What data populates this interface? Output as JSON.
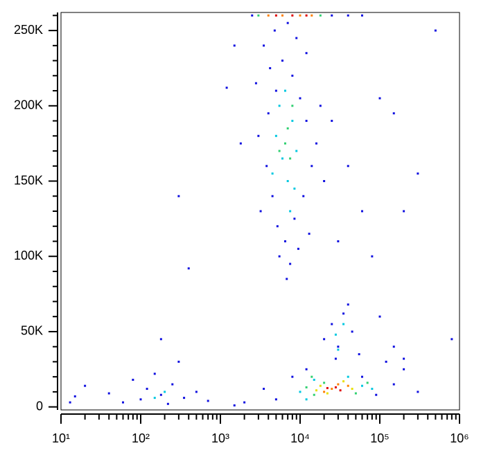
{
  "chart_data": {
    "type": "scatter",
    "xscale": "log",
    "xlim": [
      10,
      1000000
    ],
    "ylim": [
      -2000,
      262000
    ],
    "xticks": [
      {
        "value": 10,
        "label": "10¹"
      },
      {
        "value": 100,
        "label": "10²"
      },
      {
        "value": 1000,
        "label": "10³"
      },
      {
        "value": 10000,
        "label": "10⁴"
      },
      {
        "value": 100000,
        "label": "10⁵"
      },
      {
        "value": 1000000,
        "label": "10⁶"
      }
    ],
    "xminorticks": [
      20,
      30,
      40,
      50,
      60,
      70,
      80,
      90,
      200,
      300,
      400,
      500,
      600,
      700,
      800,
      900,
      2000,
      3000,
      4000,
      5000,
      6000,
      7000,
      8000,
      9000,
      20000,
      30000,
      40000,
      50000,
      60000,
      70000,
      80000,
      90000,
      200000,
      300000,
      400000,
      500000,
      600000,
      700000,
      800000,
      900000
    ],
    "yticks": [
      {
        "value": 0,
        "label": "0"
      },
      {
        "value": 50000,
        "label": "50K"
      },
      {
        "value": 100000,
        "label": "100K"
      },
      {
        "value": 150000,
        "label": "150K"
      },
      {
        "value": 200000,
        "label": "200K"
      },
      {
        "value": 250000,
        "label": "250K"
      }
    ],
    "yminorticks": [
      10000,
      20000,
      30000,
      40000,
      60000,
      70000,
      80000,
      90000,
      110000,
      120000,
      130000,
      140000,
      160000,
      170000,
      180000,
      190000,
      210000,
      220000,
      230000,
      240000,
      260000
    ],
    "series": [
      {
        "color": "#1010e0",
        "x": [
          3500,
          4200,
          5000,
          6000,
          8000,
          10000,
          12000,
          3000,
          3800,
          4500,
          5200,
          6500,
          8500,
          11000,
          14000,
          16000,
          4000,
          9000,
          7000,
          3200,
          5500,
          7500,
          9500,
          13000,
          18000,
          2800,
          20000,
          6800,
          4800,
          12000,
          25000,
          40000,
          60000,
          150000,
          200000,
          1500,
          1800,
          300,
          400,
          1200,
          30000,
          80000,
          100000,
          300000,
          500000,
          20000,
          25000,
          30000,
          35000,
          45000,
          55000,
          28000,
          40000,
          100000,
          150000,
          200000,
          800000,
          5000,
          8000,
          12000,
          60000,
          90000,
          150000,
          200000,
          300000,
          3500,
          2000,
          1500,
          120000,
          15,
          20,
          40,
          60,
          80,
          100,
          120,
          150,
          180,
          220,
          250,
          300,
          350,
          500,
          700,
          180,
          13,
          2500,
          25000,
          40000,
          60000
        ],
        "values": [
          240000,
          225000,
          210000,
          230000,
          220000,
          205000,
          190000,
          180000,
          160000,
          140000,
          120000,
          110000,
          125000,
          140000,
          160000,
          175000,
          195000,
          245000,
          255000,
          130000,
          100000,
          95000,
          105000,
          115000,
          200000,
          215000,
          150000,
          85000,
          250000,
          235000,
          190000,
          160000,
          130000,
          195000,
          130000,
          240000,
          175000,
          140000,
          92000,
          212000,
          110000,
          100000,
          205000,
          155000,
          250000,
          45000,
          55000,
          40000,
          62000,
          50000,
          35000,
          32000,
          68000,
          60000,
          40000,
          32000,
          45000,
          5000,
          20000,
          25000,
          20000,
          8000,
          15000,
          25000,
          10000,
          12000,
          3000,
          1000,
          30000,
          7000,
          14000,
          9000,
          3000,
          18000,
          5000,
          12000,
          22000,
          8000,
          2000,
          15000,
          30000,
          6000,
          10000,
          4000,
          45000,
          3000,
          260000,
          260000,
          260000,
          260000
        ]
      },
      {
        "color": "#00c8e0",
        "x": [
          5000,
          6000,
          7000,
          8000,
          6500,
          4500,
          9000,
          7500,
          5500,
          8500,
          28000,
          35000,
          30000,
          10000,
          15000,
          40000,
          60000,
          80000,
          12000,
          200,
          150
        ],
        "values": [
          180000,
          165000,
          150000,
          190000,
          210000,
          155000,
          170000,
          130000,
          200000,
          145000,
          48000,
          55000,
          38000,
          10000,
          18000,
          20000,
          14000,
          12000,
          5000,
          10000,
          6000
        ]
      },
      {
        "color": "#30d070",
        "x": [
          6500,
          7500,
          5500,
          8000,
          7000,
          15000,
          20000,
          50000,
          12000,
          70000,
          14000,
          3000,
          18000
        ],
        "values": [
          175000,
          165000,
          170000,
          200000,
          185000,
          8000,
          16000,
          9000,
          13000,
          16000,
          20000,
          260000,
          260000
        ]
      },
      {
        "color": "#e8e000",
        "x": [
          18000,
          45000,
          22000,
          35000,
          16000
        ],
        "values": [
          14000,
          12000,
          9000,
          17000,
          11000
        ]
      },
      {
        "color": "#ff8000",
        "x": [
          25000,
          30000,
          20000,
          40000,
          4000,
          6000,
          10000,
          14000
        ],
        "values": [
          12000,
          15000,
          10000,
          14000,
          260000,
          260000,
          260000,
          260000
        ]
      },
      {
        "color": "#e00000",
        "x": [
          28000,
          22000,
          32000,
          5000,
          8000,
          12000
        ],
        "values": [
          13000,
          12500,
          11000,
          260000,
          260000,
          260000
        ]
      }
    ]
  }
}
